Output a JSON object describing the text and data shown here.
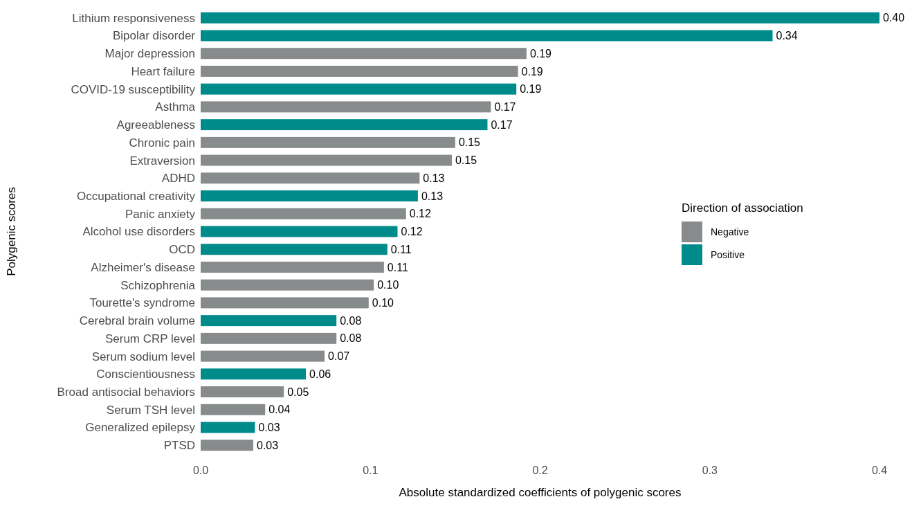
{
  "chart_data": {
    "type": "bar",
    "orientation": "horizontal",
    "xlabel": "Absolute standardized coefficients of polygenic scores",
    "ylabel": "Polygenic scores",
    "legend_title": "Direction of association",
    "legend": "right",
    "grid": false,
    "categories": [
      "Lithium responsiveness",
      "Bipolar disorder",
      "Major depression",
      "Heart failure",
      "COVID-19 susceptibility",
      "Asthma",
      "Agreeableness",
      "Chronic pain",
      "Extraversion",
      "ADHD",
      "Occupational creativity",
      "Panic anxiety",
      "Alcohol use disorders",
      "OCD",
      "Alzheimer's disease",
      "Schizophrenia",
      "Tourette's syndrome",
      "Cerebral brain volume",
      "Serum CRP level",
      "Serum sodium level",
      "Conscientiousness",
      "Broad antisocial behaviors",
      "Serum TSH level",
      "Generalized epilepsy",
      "PTSD"
    ],
    "xlim": [
      0,
      0.4
    ],
    "xticks": [
      {
        "value": 0,
        "label": "0.0"
      },
      0.1,
      0.2,
      0.3,
      0.4
    ],
    "series": [
      {
        "name": "Negative",
        "color": "#878b8b",
        "values": [
          null,
          null,
          0.192,
          0.187,
          null,
          0.171,
          null,
          0.15,
          0.148,
          0.129,
          null,
          0.121,
          null,
          null,
          0.108,
          0.102,
          0.099,
          null,
          0.08,
          0.073,
          null,
          0.049,
          0.038,
          null,
          0.031
        ],
        "value_labels": [
          null,
          null,
          "0.19",
          "0.19",
          null,
          "0.17",
          null,
          "0.15",
          "0.15",
          "0.13",
          null,
          "0.12",
          null,
          null,
          "0.11",
          "0.10",
          "0.10",
          null,
          "0.08",
          "0.07",
          null,
          "0.05",
          "0.04",
          null,
          "0.03"
        ]
      },
      {
        "name": "Positive",
        "color": "#008b8b",
        "values": [
          0.4,
          0.337,
          null,
          null,
          0.186,
          null,
          0.169,
          null,
          null,
          null,
          0.128,
          null,
          0.116,
          0.11,
          null,
          null,
          null,
          0.08,
          null,
          null,
          0.062,
          null,
          null,
          0.032,
          null
        ],
        "value_labels": [
          "0.40",
          "0.34",
          null,
          null,
          "0.19",
          null,
          "0.17",
          null,
          null,
          null,
          "0.13",
          null,
          "0.12",
          "0.11",
          null,
          null,
          null,
          "0.08",
          null,
          null,
          "0.06",
          null,
          null,
          "0.03",
          null
        ]
      }
    ]
  }
}
